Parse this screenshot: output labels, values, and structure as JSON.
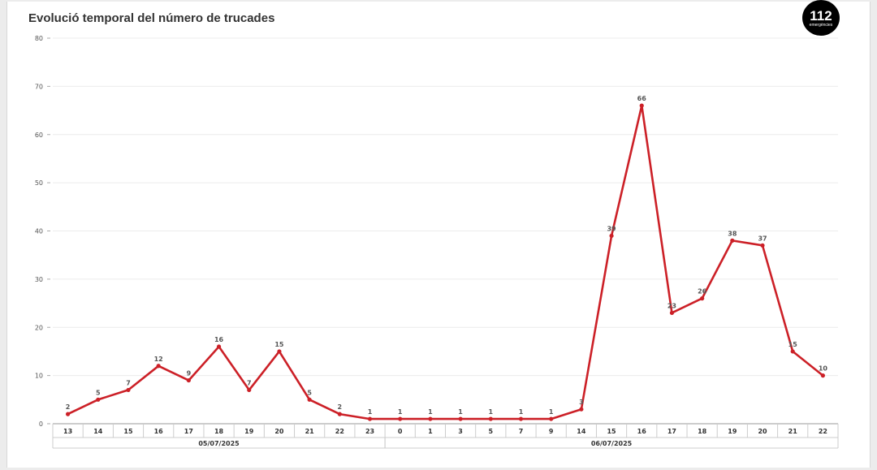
{
  "logo": {
    "number": "112",
    "subtitle": "emergències"
  },
  "colors": {
    "line": "#cc2027",
    "grid": "#ececec",
    "axis": "#999999"
  },
  "chart_data": {
    "type": "line",
    "title": "Evolució temporal del número de trucades",
    "xlabel": "",
    "ylabel": "",
    "ylim": [
      0,
      80
    ],
    "yticks": [
      0,
      10,
      20,
      30,
      40,
      50,
      60,
      70,
      80
    ],
    "grid": true,
    "legend": "none",
    "categories": [
      "13",
      "14",
      "15",
      "16",
      "17",
      "18",
      "19",
      "20",
      "21",
      "22",
      "23",
      "0",
      "1",
      "3",
      "5",
      "7",
      "9",
      "14",
      "15",
      "16",
      "17",
      "18",
      "19",
      "20",
      "21",
      "22"
    ],
    "groups": [
      {
        "label": "05/07/2025",
        "start": 0,
        "end": 10
      },
      {
        "label": "06/07/2025",
        "start": 11,
        "end": 25
      }
    ],
    "series": [
      {
        "values": [
          2,
          5,
          7,
          12,
          9,
          16,
          7,
          15,
          5,
          2,
          1,
          1,
          1,
          1,
          1,
          1,
          1,
          3,
          39,
          66,
          23,
          26,
          38,
          37,
          15,
          10
        ]
      }
    ]
  }
}
